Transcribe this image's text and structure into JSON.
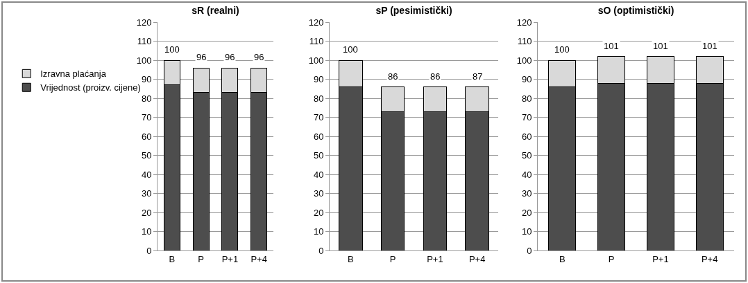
{
  "chart_data": [
    {
      "type": "bar",
      "title": "sR (realni)",
      "categories": [
        "B",
        "P",
        "P+1",
        "P+4"
      ],
      "stacked": true,
      "legend": "left",
      "grid": "y",
      "ylim": [
        0,
        120
      ],
      "yticks": [
        0,
        10,
        20,
        30,
        40,
        50,
        60,
        70,
        80,
        90,
        100,
        110,
        120
      ],
      "series": [
        {
          "name": "Vrijednost (proizv. cijene)",
          "color": "#4d4d4d",
          "values": [
            87,
            83,
            83,
            83
          ]
        },
        {
          "name": "Izravna plaćanja",
          "color": "#d9d9d9",
          "values": [
            13,
            13,
            13,
            13
          ]
        }
      ],
      "totals": [
        "100",
        "96",
        "96",
        "96"
      ]
    },
    {
      "type": "bar",
      "title": "sP (pesimistički)",
      "categories": [
        "B",
        "P",
        "P+1",
        "P+4"
      ],
      "stacked": true,
      "grid": "y",
      "ylim": [
        0,
        120
      ],
      "yticks": [
        0,
        10,
        20,
        30,
        40,
        50,
        60,
        70,
        80,
        90,
        100,
        110,
        120
      ],
      "series": [
        {
          "color": "#4d4d4d",
          "values": [
            86,
            73,
            73,
            73
          ]
        },
        {
          "color": "#d9d9d9",
          "values": [
            14,
            13,
            13,
            13
          ]
        }
      ],
      "totals": [
        "100",
        "86",
        "86",
        "87"
      ]
    },
    {
      "type": "bar",
      "title": "sO (optimistički)",
      "categories": [
        "B",
        "P",
        "P+1",
        "P+4"
      ],
      "stacked": true,
      "grid": "y",
      "ylim": [
        0,
        120
      ],
      "yticks": [
        0,
        10,
        20,
        30,
        40,
        50,
        60,
        70,
        80,
        90,
        100,
        110,
        120
      ],
      "series": [
        {
          "color": "#4d4d4d",
          "values": [
            86,
            88,
            88,
            88
          ]
        },
        {
          "color": "#d9d9d9",
          "values": [
            14,
            14,
            14,
            14
          ]
        }
      ],
      "totals": [
        "100",
        "101",
        "101",
        "101"
      ]
    }
  ]
}
